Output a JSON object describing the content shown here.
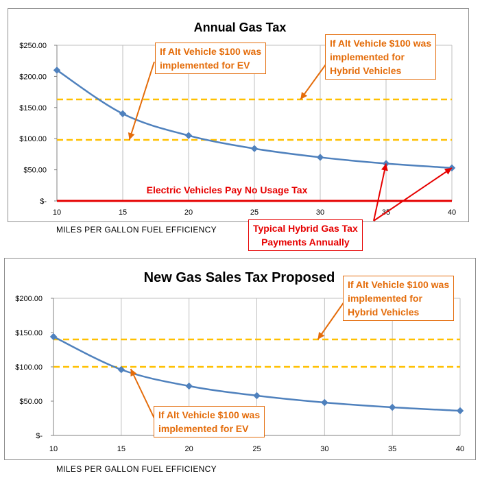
{
  "chart_data": [
    {
      "type": "line",
      "title": "Annual Gas Tax",
      "xlabel": "MILES PER GALLON FUEL EFFICIENCY",
      "ylabel": "",
      "x": [
        10,
        15,
        20,
        25,
        30,
        35,
        40
      ],
      "ylim": [
        0,
        250
      ],
      "yticks": [
        0,
        50,
        100,
        150,
        200,
        250
      ],
      "ytick_labels": [
        "$-",
        "$50.00",
        "$100.00",
        "$150.00",
        "$200.00",
        "$250.00"
      ],
      "grid": "vertical",
      "series": [
        {
          "name": "",
          "color": "#4f81bd",
          "style": "line-diamond",
          "values": [
            210,
            140,
            105,
            84,
            70,
            60,
            53
          ]
        }
      ],
      "reference_lines": [
        {
          "y": 163,
          "color": "#ffc000",
          "style": "dashed"
        },
        {
          "y": 98,
          "color": "#ffc000",
          "style": "dashed"
        },
        {
          "y": 0,
          "color": "#e60000",
          "style": "solid",
          "label": "Electric Vehicles Pay No Usage Tax"
        }
      ],
      "annotations": [
        {
          "text": "If Alt Vehicle $100 was\nimplemented for EV",
          "color": "#e46c0a",
          "points_to": {
            "x": 15.5,
            "y": 98
          }
        },
        {
          "text": "If Alt Vehicle $100 was\nimplemented for\nHybrid Vehicles",
          "color": "#e46c0a",
          "points_to": {
            "x": 28.5,
            "y": 163
          }
        },
        {
          "text": "Typical Hybrid Gas Tax\nPayments Annually",
          "color": "#e60000",
          "points_to": [
            {
              "x": 35,
              "y": 60
            },
            {
              "x": 40,
              "y": 53
            }
          ]
        }
      ]
    },
    {
      "type": "line",
      "title": "New Gas Sales Tax Proposed",
      "xlabel": "MILES PER GALLON FUEL EFFICIENCY",
      "ylabel": "",
      "x": [
        10,
        15,
        20,
        25,
        30,
        35,
        40
      ],
      "ylim": [
        0,
        200
      ],
      "yticks": [
        0,
        50,
        100,
        150,
        200
      ],
      "ytick_labels": [
        "$-",
        "$50.00",
        "$100.00",
        "$150.00",
        "$200.00"
      ],
      "grid": "vertical",
      "series": [
        {
          "name": "",
          "color": "#4f81bd",
          "style": "line-diamond",
          "values": [
            144,
            96,
            72,
            58,
            48,
            41,
            36
          ]
        }
      ],
      "reference_lines": [
        {
          "y": 140,
          "color": "#ffc000",
          "style": "dashed"
        },
        {
          "y": 100,
          "color": "#ffc000",
          "style": "dashed"
        }
      ],
      "annotations": [
        {
          "text": "If Alt Vehicle $100 was\nimplemented for\nHybrid Vehicles",
          "color": "#e46c0a",
          "points_to": {
            "x": 29.5,
            "y": 140
          }
        },
        {
          "text": "If Alt Vehicle $100 was\nimplemented for EV",
          "color": "#e46c0a",
          "points_to": {
            "x": 15.7,
            "y": 97
          }
        }
      ]
    }
  ]
}
